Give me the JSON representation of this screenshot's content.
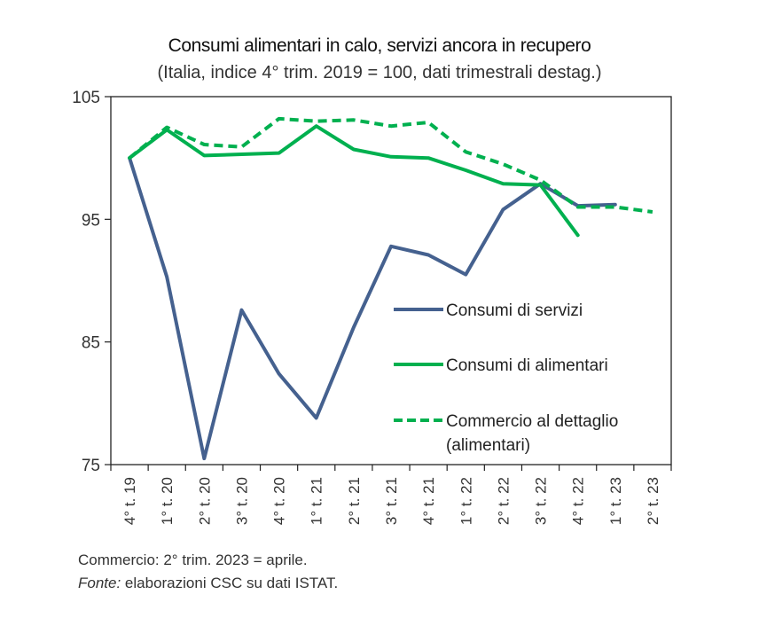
{
  "chart_data": {
    "type": "line",
    "title": "Consumi alimentari in calo, servizi ancora in recupero",
    "subtitle": "(Italia, indice 4° trim. 2019 = 100, dati trimestrali destag.)",
    "xlabel": "",
    "ylabel": "",
    "ylim": [
      75,
      105
    ],
    "yticks": [
      75,
      85,
      95,
      105
    ],
    "categories": [
      "4° t. 19",
      "1° t. 20",
      "2° t. 20",
      "3° t. 20",
      "4° t. 20",
      "1° t. 21",
      "2° t. 21",
      "3° t. 21",
      "4° t. 21",
      "1° t. 22",
      "2° t. 22",
      "3° t. 22",
      "4° t. 22",
      "1° t. 23",
      "2° t. 23"
    ],
    "grid": false,
    "legend_position": "center-right",
    "series": [
      {
        "name": "Consumi di servizi",
        "color": "#45618f",
        "style": "solid",
        "values": [
          100.0,
          90.3,
          75.5,
          87.6,
          82.4,
          78.8,
          86.2,
          92.8,
          92.1,
          90.5,
          95.8,
          97.9,
          96.1,
          96.2,
          null
        ]
      },
      {
        "name": "Consumi di alimentari",
        "color": "#00b04f",
        "style": "solid",
        "values": [
          100.0,
          102.3,
          100.2,
          100.3,
          100.4,
          102.6,
          100.7,
          100.1,
          100.0,
          99.0,
          97.9,
          97.8,
          93.7,
          null,
          null
        ]
      },
      {
        "name": "Commercio al dettaglio (alimentari)",
        "color": "#00b04f",
        "style": "dashed",
        "values": [
          100.0,
          102.5,
          101.1,
          100.9,
          103.2,
          103.0,
          103.1,
          102.6,
          102.9,
          100.5,
          99.5,
          98.2,
          96.0,
          96.0,
          95.6
        ]
      }
    ],
    "legend": [
      {
        "label_line1": "Consumi di servizi",
        "label_line2": ""
      },
      {
        "label_line1": "Consumi di alimentari",
        "label_line2": ""
      },
      {
        "label_line1": "Commercio al dettaglio",
        "label_line2": "(alimentari)"
      }
    ]
  },
  "footer": {
    "note": "Commercio: 2° trim. 2023 = aprile.",
    "source_label": "Fonte:",
    "source_text": " elaborazioni CSC su dati ISTAT."
  }
}
